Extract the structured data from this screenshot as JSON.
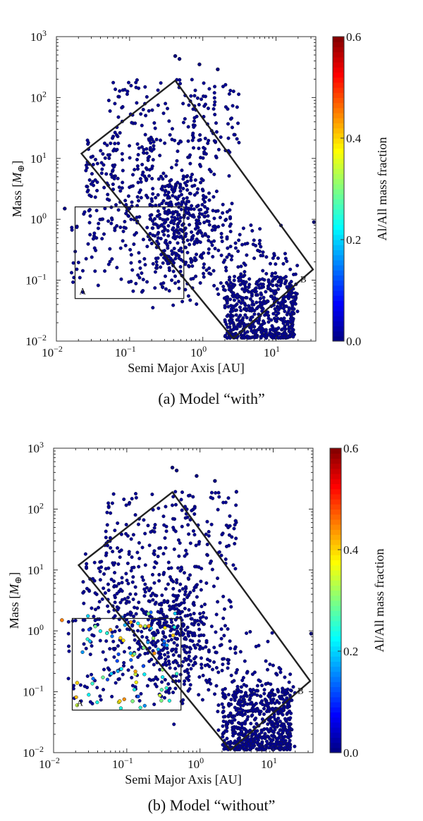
{
  "chart_data": [
    {
      "type": "scatter",
      "caption": "(a) Model “with”",
      "xlabel": "Semi Major Axis [AU]",
      "ylabel": "Mass [M⊕]",
      "xscale": "log",
      "yscale": "log",
      "xlim": [
        0.01,
        35
      ],
      "ylim": [
        0.01,
        1000
      ],
      "x_ticks": [
        "10^-2",
        "10^-1",
        "10^0",
        "10^1"
      ],
      "y_ticks": [
        "10^-2",
        "10^-1",
        "10^0",
        "10^1",
        "10^2",
        "10^3"
      ],
      "colorbar": {
        "label": "Al/All mass fraction",
        "min": 0.0,
        "max": 0.6,
        "ticks": [
          "0.0",
          "0.2",
          "0.4",
          "0.6"
        ]
      },
      "regions": [
        {
          "label": "A",
          "x": [
            0.018,
            0.55
          ],
          "y": [
            0.05,
            1.6
          ]
        },
        {
          "label": "B",
          "corners": [
            [
              0.022,
              12
            ],
            [
              0.42,
              190
            ],
            [
              32,
              0.15
            ],
            [
              2.6,
              0.011
            ]
          ]
        }
      ],
      "clusters": [
        {
          "x_range": [
            0.02,
            20
          ],
          "y_range": [
            0.01,
            400
          ],
          "count": 3500,
          "fraction": 0.0
        }
      ],
      "points": [
        {
          "x": 0.42,
          "y": 480,
          "fraction": 0.0
        },
        {
          "x": 0.48,
          "y": 430,
          "fraction": 0.0
        },
        {
          "x": 0.9,
          "y": 350,
          "fraction": 0.0
        },
        {
          "x": 1.6,
          "y": 290,
          "fraction": 0.0
        },
        {
          "x": 0.013,
          "y": 1.5,
          "fraction": 0.0
        },
        {
          "x": 33,
          "y": 0.9,
          "fraction": 0.0
        }
      ]
    },
    {
      "type": "scatter",
      "caption": "(b) Model “without”",
      "xlabel": "Semi Major Axis [AU]",
      "ylabel": "Mass [M⊕]",
      "xscale": "log",
      "yscale": "log",
      "xlim": [
        0.01,
        35
      ],
      "ylim": [
        0.01,
        1000
      ],
      "x_ticks": [
        "10^-2",
        "10^-1",
        "10^0",
        "10^1"
      ],
      "y_ticks": [
        "10^-2",
        "10^-1",
        "10^0",
        "10^1",
        "10^2",
        "10^3"
      ],
      "colorbar": {
        "label": "Al/All mass fraction",
        "min": 0.0,
        "max": 0.6,
        "ticks": [
          "0.0",
          "0.2",
          "0.4",
          "0.6"
        ]
      },
      "regions": [
        {
          "label": "A",
          "x": [
            0.018,
            0.55
          ],
          "y": [
            0.05,
            1.6
          ]
        },
        {
          "label": "B",
          "corners": [
            [
              0.022,
              12
            ],
            [
              0.42,
              190
            ],
            [
              32,
              0.15
            ],
            [
              2.6,
              0.011
            ]
          ]
        }
      ],
      "clusters": [
        {
          "x_range": [
            0.02,
            20
          ],
          "y_range": [
            0.01,
            400
          ],
          "count": 3500,
          "fraction": 0.0
        },
        {
          "x_range": [
            0.02,
            0.5
          ],
          "y_range": [
            0.05,
            2.5
          ],
          "count": 70,
          "fraction": [
            0.1,
            0.45
          ]
        }
      ],
      "points": [
        {
          "x": 0.42,
          "y": 480,
          "fraction": 0.0
        },
        {
          "x": 0.48,
          "y": 430,
          "fraction": 0.0
        },
        {
          "x": 0.9,
          "y": 350,
          "fraction": 0.0
        },
        {
          "x": 1.6,
          "y": 290,
          "fraction": 0.0
        },
        {
          "x": 0.013,
          "y": 1.5,
          "fraction": 0.45
        },
        {
          "x": 33,
          "y": 0.9,
          "fraction": 0.0
        },
        {
          "x": 0.021,
          "y": 0.14,
          "fraction": 0.4
        },
        {
          "x": 0.08,
          "y": 0.07,
          "fraction": 0.4
        },
        {
          "x": 0.12,
          "y": 0.07,
          "fraction": 0.3
        },
        {
          "x": 0.2,
          "y": 1.2,
          "fraction": 0.45
        }
      ]
    }
  ]
}
